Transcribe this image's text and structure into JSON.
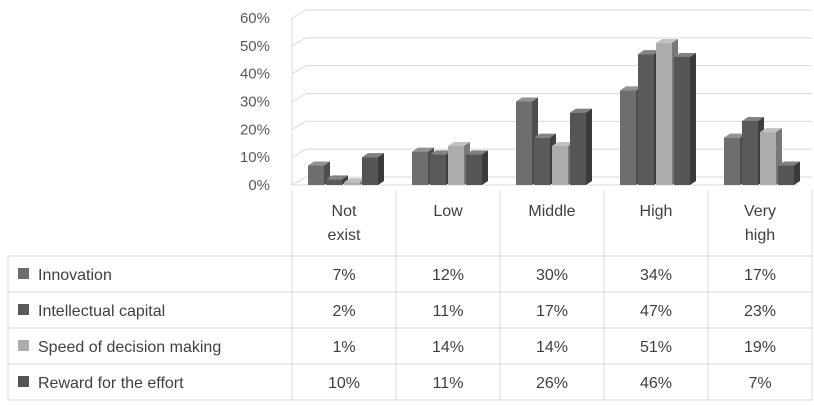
{
  "chart_data": {
    "type": "bar",
    "categories": [
      [
        "Not",
        "exist"
      ],
      [
        "Low"
      ],
      [
        "Middle"
      ],
      [
        "High"
      ],
      [
        "Very",
        "high"
      ]
    ],
    "y_ticks": [
      "60%",
      "50%",
      "40%",
      "30%",
      "20%",
      "10%",
      "0%"
    ],
    "ylim": [
      0,
      60
    ],
    "unit": "%",
    "grid": true,
    "legend_placement": "data-table-left",
    "series": [
      {
        "name": "Innovation",
        "color": "#6e6e6e",
        "values": [
          7,
          12,
          30,
          34,
          17
        ],
        "labels": [
          "7%",
          "12%",
          "30%",
          "34%",
          "17%"
        ]
      },
      {
        "name": "Intellectual capital",
        "color": "#5a5a5a",
        "values": [
          2,
          11,
          17,
          47,
          23
        ],
        "labels": [
          "2%",
          "11%",
          "17%",
          "47%",
          "23%"
        ]
      },
      {
        "name": "Speed of decision making",
        "color": "#acacac",
        "values": [
          1,
          14,
          14,
          51,
          19
        ],
        "labels": [
          "1%",
          "14%",
          "14%",
          "51%",
          "19%"
        ]
      },
      {
        "name": "Reward for the effort",
        "color": "#555555",
        "values": [
          10,
          11,
          26,
          46,
          7
        ],
        "labels": [
          "10%",
          "11%",
          "26%",
          "46%",
          "7%"
        ]
      }
    ]
  }
}
